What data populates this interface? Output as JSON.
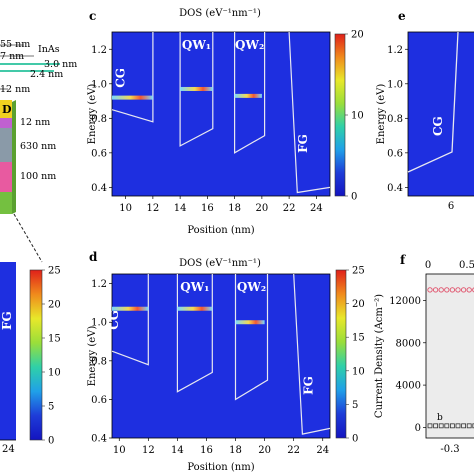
{
  "layer_labels": [
    {
      "text": "55 nm"
    },
    {
      "text": "7 nm"
    },
    {
      "text": "InAs"
    },
    {
      "text": "3.0 nm"
    },
    {
      "text": "2.4 nm"
    },
    {
      "text": "12 nm"
    },
    {
      "text": "D"
    },
    {
      "text": "12 nm"
    },
    {
      "text": "630 nm"
    },
    {
      "text": "100 nm"
    }
  ],
  "panel_letters": {
    "c": "c",
    "d": "d",
    "e": "e",
    "f": "f"
  },
  "colorbar_left": {
    "ticks": [
      "25",
      "20",
      "15",
      "10",
      "5",
      "0"
    ],
    "gradient": [
      "#e0201a",
      "#f08a1c",
      "#e8e82a",
      "#9ade3a",
      "#2fd0a8",
      "#20a0e8",
      "#1e3cd8",
      "#1414c0"
    ]
  },
  "panel_left": {
    "fg_label": "FG",
    "x_tick": "24"
  },
  "chart_data": [
    {
      "type": "heatmap",
      "panel": "c",
      "title": "DOS (eV⁻¹nm⁻¹)",
      "xlabel": "Position (nm)",
      "ylabel": "Energy (eV)",
      "x_ticks": [
        "10",
        "12",
        "14",
        "16",
        "18",
        "20",
        "22",
        "24"
      ],
      "y_ticks": [
        "0.4",
        "0.6",
        "0.8",
        "1.0",
        "1.2"
      ],
      "xlim": [
        9,
        25
      ],
      "ylim": [
        0.35,
        1.3
      ],
      "colorbar_ticks": [
        "20",
        "10",
        "0"
      ],
      "region_labels": [
        "CG",
        "QW₁",
        "QW₂",
        "FG"
      ],
      "states": [
        {
          "x_start": 9,
          "x_end": 12,
          "energy": 0.92
        },
        {
          "x_start": 14,
          "x_end": 16.4,
          "energy": 0.97
        },
        {
          "x_start": 18,
          "x_end": 20,
          "energy": 0.93
        }
      ]
    },
    {
      "type": "heatmap",
      "panel": "d",
      "title": "DOS (eV⁻¹nm⁻¹)",
      "xlabel": "Position (nm)",
      "ylabel": "Energy (eV)",
      "x_ticks": [
        "10",
        "12",
        "14",
        "16",
        "18",
        "20",
        "22",
        "24"
      ],
      "y_ticks": [
        "0.4",
        "0.6",
        "0.8",
        "1.0",
        "1.2"
      ],
      "xlim": [
        9.5,
        24.5
      ],
      "ylim": [
        0.4,
        1.25
      ],
      "colorbar_ticks": [
        "25",
        "20",
        "15",
        "10",
        "5",
        "0"
      ],
      "region_labels": [
        "CG",
        "QW₁",
        "QW₂",
        "FG"
      ],
      "states": [
        {
          "x_start": 9.5,
          "x_end": 12,
          "energy": 1.07
        },
        {
          "x_start": 14,
          "x_end": 16.4,
          "energy": 1.07
        },
        {
          "x_start": 18,
          "x_end": 20,
          "energy": 1.0
        }
      ]
    },
    {
      "type": "heatmap",
      "panel": "e",
      "ylabel": "Energy (eV)",
      "y_ticks": [
        "0.4",
        "0.6",
        "0.8",
        "1.0",
        "1.2"
      ],
      "x_ticks": [
        "6"
      ],
      "region_labels": [
        "CG"
      ]
    },
    {
      "type": "scatter",
      "panel": "f",
      "ylabel": "Current Density (Acm⁻²)",
      "y_ticks": [
        "0",
        "4000",
        "8000",
        "12000"
      ],
      "top_x_ticks": [
        "0",
        "0.5"
      ],
      "bottom_x_ticks": [
        "-0.3"
      ],
      "series_labels": [
        "b"
      ],
      "series": [
        {
          "values": [
            13000,
            13000,
            13000,
            13000,
            13000,
            13000,
            13000,
            13000,
            13000
          ]
        },
        {
          "values": [
            150,
            150,
            150,
            150,
            150,
            150,
            150,
            150,
            150
          ]
        }
      ]
    }
  ]
}
